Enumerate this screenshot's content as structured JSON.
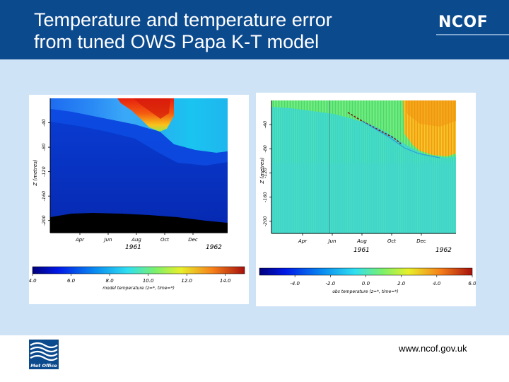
{
  "slide": {
    "title_lines": [
      "Temperature and temperature error",
      "from tuned OWS Papa K-T model"
    ],
    "brand": "NCOF",
    "url": "www.ncof.gov.uk",
    "logo_text": "Met Office"
  },
  "chart_data": [
    {
      "type": "heatmap",
      "ylabel": "Z (metres)",
      "yticks": [
        -40,
        -80,
        -120,
        -160,
        -200
      ],
      "xticks": [
        "Apr",
        "Jun",
        "Aug",
        "Oct",
        "Dec"
      ],
      "year_labels": [
        "1961",
        "1962"
      ],
      "colorbar_label": "model temperature (z=*, time=*)",
      "colorbar_ticks": [
        "4.0",
        "6.0",
        "8.0",
        "10.0",
        "12.0",
        "14.0"
      ],
      "colorbar_range": [
        4,
        15
      ]
    },
    {
      "type": "heatmap",
      "ylabel": "Z (metres)",
      "yticks": [
        -40,
        -80,
        -120,
        -160,
        -200
      ],
      "xticks": [
        "Apr",
        "Jun",
        "Aug",
        "Oct",
        "Dec"
      ],
      "year_labels": [
        "1961",
        "1962"
      ],
      "colorbar_label": "obs temperature (z=*, time=*)",
      "colorbar_ticks": [
        "-4.0",
        "-2.0",
        "0.0",
        "2.0",
        "4.0",
        "6.0"
      ],
      "colorbar_range": [
        -6,
        6
      ]
    }
  ]
}
